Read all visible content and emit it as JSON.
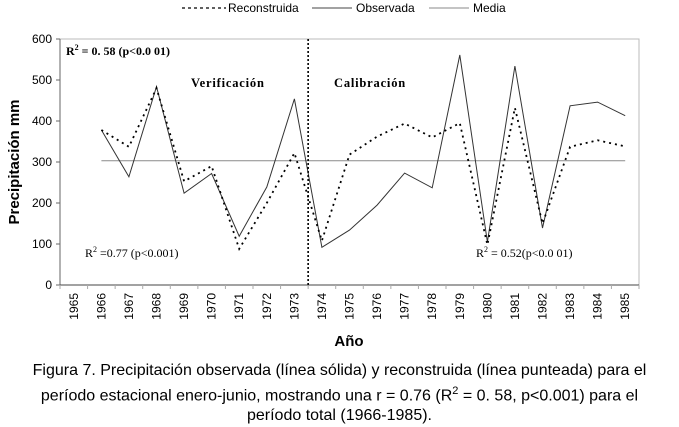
{
  "chart_data": {
    "type": "line",
    "xlabel": "Año",
    "ylabel": "Precipitación mm",
    "ylim": [
      0,
      600
    ],
    "yticks": [
      0,
      100,
      200,
      300,
      400,
      500,
      600
    ],
    "categories": [
      "1965",
      "1966",
      "1967",
      "1968",
      "1969",
      "1970",
      "1971",
      "1972",
      "1973",
      "1974",
      "1975",
      "1976",
      "1977",
      "1978",
      "1979",
      "1980",
      "1981",
      "1982",
      "1983",
      "1984",
      "1985"
    ],
    "legend": [
      "Reconstruida",
      "Observada",
      "Media"
    ],
    "legend_position": "top",
    "series": [
      {
        "name": "Reconstruida",
        "style": "dotted",
        "x": [
          "1966",
          "1967",
          "1968",
          "1969",
          "1970",
          "1971",
          "1972",
          "1973",
          "1974",
          "1975",
          "1976",
          "1977",
          "1978",
          "1979",
          "1980",
          "1981",
          "1982",
          "1983",
          "1984",
          "1985"
        ],
        "values": [
          378,
          337,
          480,
          253,
          290,
          88,
          200,
          322,
          108,
          318,
          362,
          394,
          360,
          395,
          98,
          432,
          150,
          337,
          353,
          338
        ]
      },
      {
        "name": "Observada",
        "style": "solid",
        "x": [
          "1966",
          "1967",
          "1968",
          "1969",
          "1970",
          "1971",
          "1972",
          "1973",
          "1974",
          "1975",
          "1976",
          "1977",
          "1978",
          "1979",
          "1980",
          "1981",
          "1982",
          "1983",
          "1984",
          "1985"
        ],
        "values": [
          378,
          264,
          484,
          224,
          272,
          119,
          239,
          454,
          92,
          134,
          195,
          273,
          237,
          561,
          105,
          534,
          139,
          437,
          446,
          413
        ]
      },
      {
        "name": "Media",
        "style": "solid-gray",
        "x": [
          "1966",
          "1985"
        ],
        "values": [
          303,
          303
        ]
      }
    ],
    "divider_between": [
      "1973",
      "1974"
    ],
    "annotations": {
      "r2_total": "R",
      "r2_total_sup": "2",
      "r2_total_text": " = 0. 58 (p<0.0 01)",
      "verificacion": "Verificación",
      "calibracion": "Calibración",
      "r2_verif": "R",
      "r2_verif_sup": "2",
      "r2_verif_text": " =0.77 (p<0.001)",
      "r2_calib": "R",
      "r2_calib_sup": "2",
      "r2_calib_text": " = 0.52(p<0.0 01)"
    }
  },
  "caption": {
    "line1": "Figura 7. Precipitación observada (línea sólida) y reconstruida (línea punteada) para el",
    "line2_a": "período estacional enero-junio, mostrando una r = 0.76 (R",
    "line2_sup": "2",
    "line2_b": " = 0. 58, p<0.001) para el",
    "line3": "período total (1966-1985)."
  },
  "colors": {
    "observed": "#333333",
    "reconstructed": "#000000",
    "mean": "#8a8a8a",
    "axis": "#555555",
    "frame": "#bbbbbb"
  }
}
